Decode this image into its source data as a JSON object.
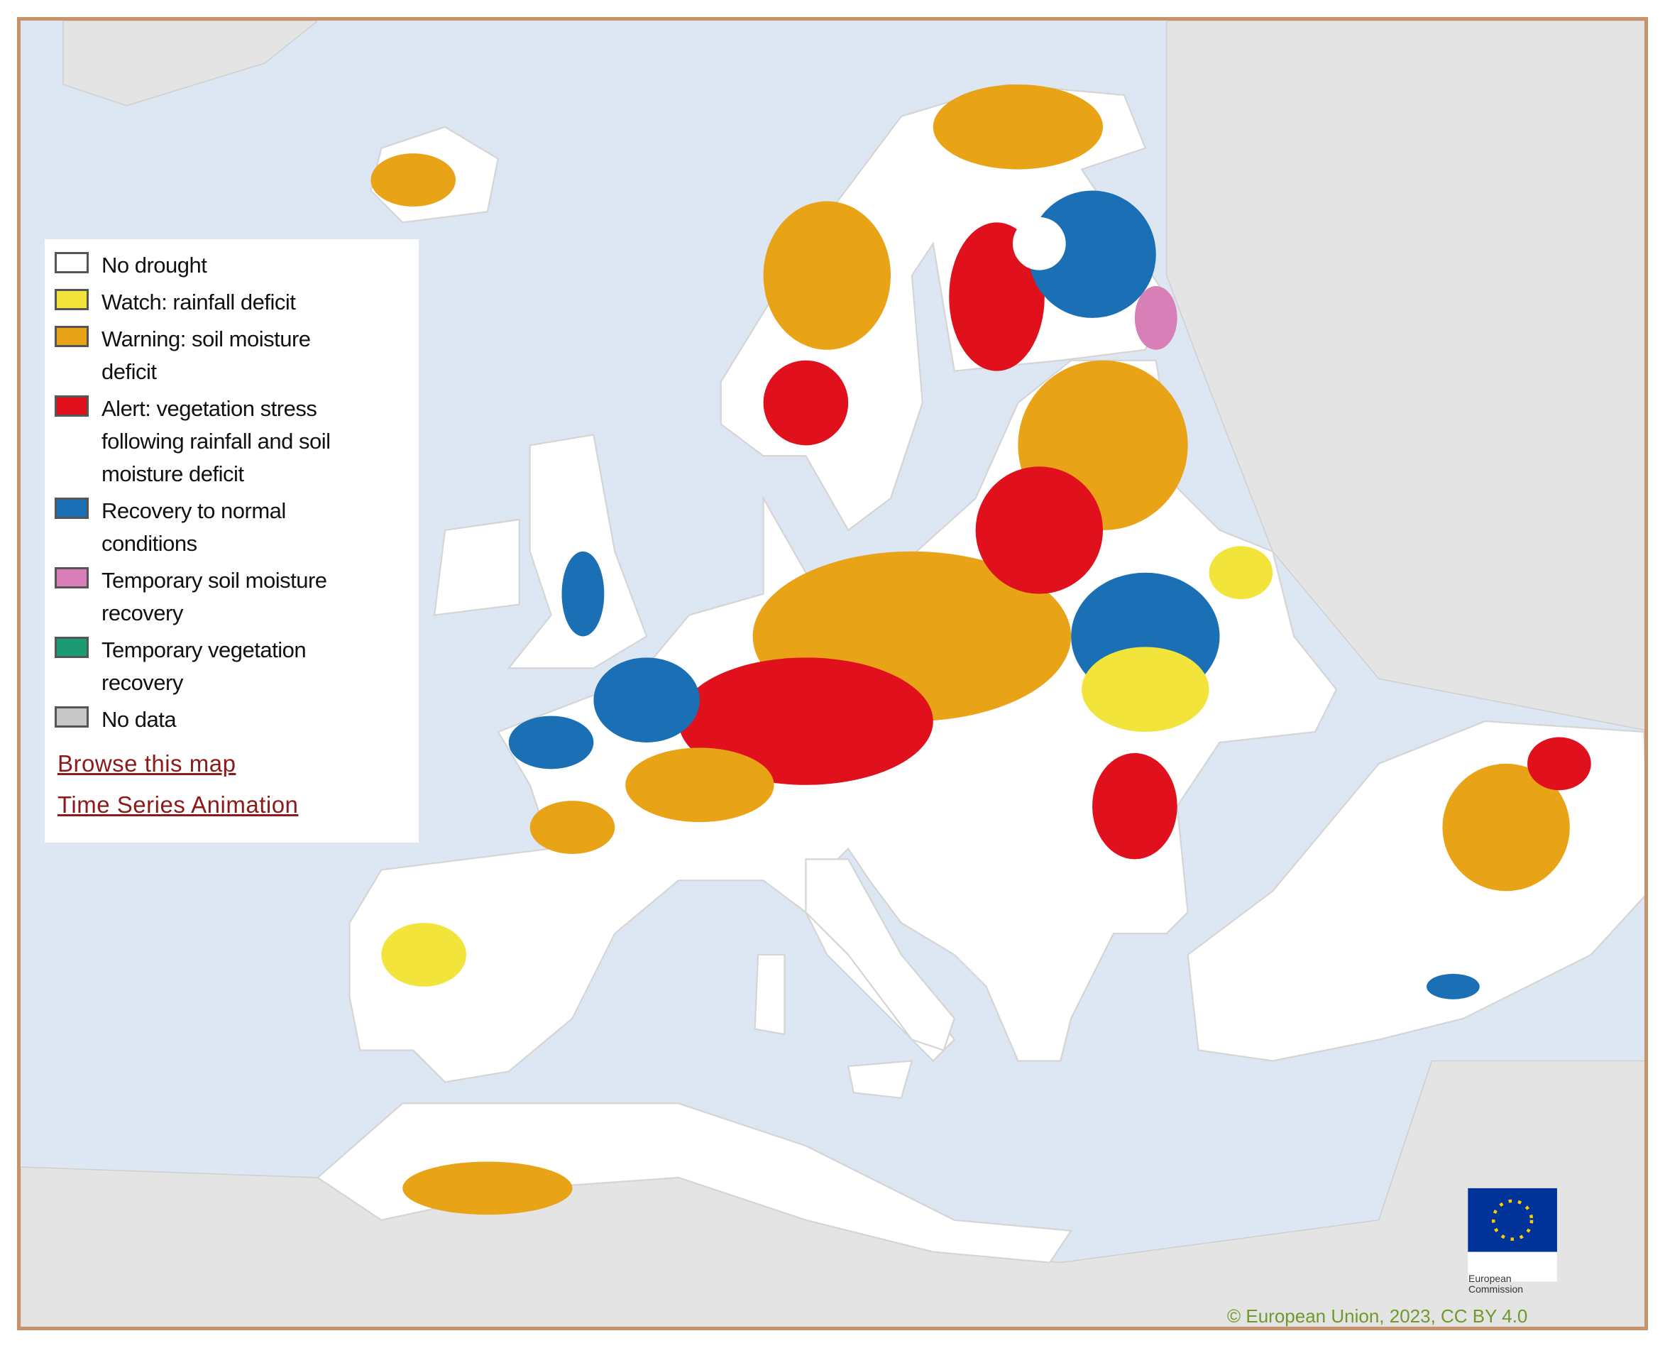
{
  "legend": [
    {
      "label": "No drought",
      "color": "#ffffff"
    },
    {
      "label": "Watch: rainfall deficit",
      "color": "#f2e43a"
    },
    {
      "label": "Warning: soil moisture deficit",
      "color": "#e8a317"
    },
    {
      "label": "Alert: vegetation stress following rainfall and soil moisture deficit",
      "color": "#e0101d"
    },
    {
      "label": "Recovery to normal conditions",
      "color": "#1a6fb5"
    },
    {
      "label": "Temporary soil moisture recovery",
      "color": "#d77fb6"
    },
    {
      "label": "Temporary vegetation recovery",
      "color": "#1b9a73"
    },
    {
      "label": "No data",
      "color": "#c8c8c8"
    }
  ],
  "links": [
    "Browse this map",
    "Time Series Animation"
  ],
  "copyright": "© European Union, 2023, CC BY 4.0",
  "logo": {
    "text": "European Commission"
  }
}
